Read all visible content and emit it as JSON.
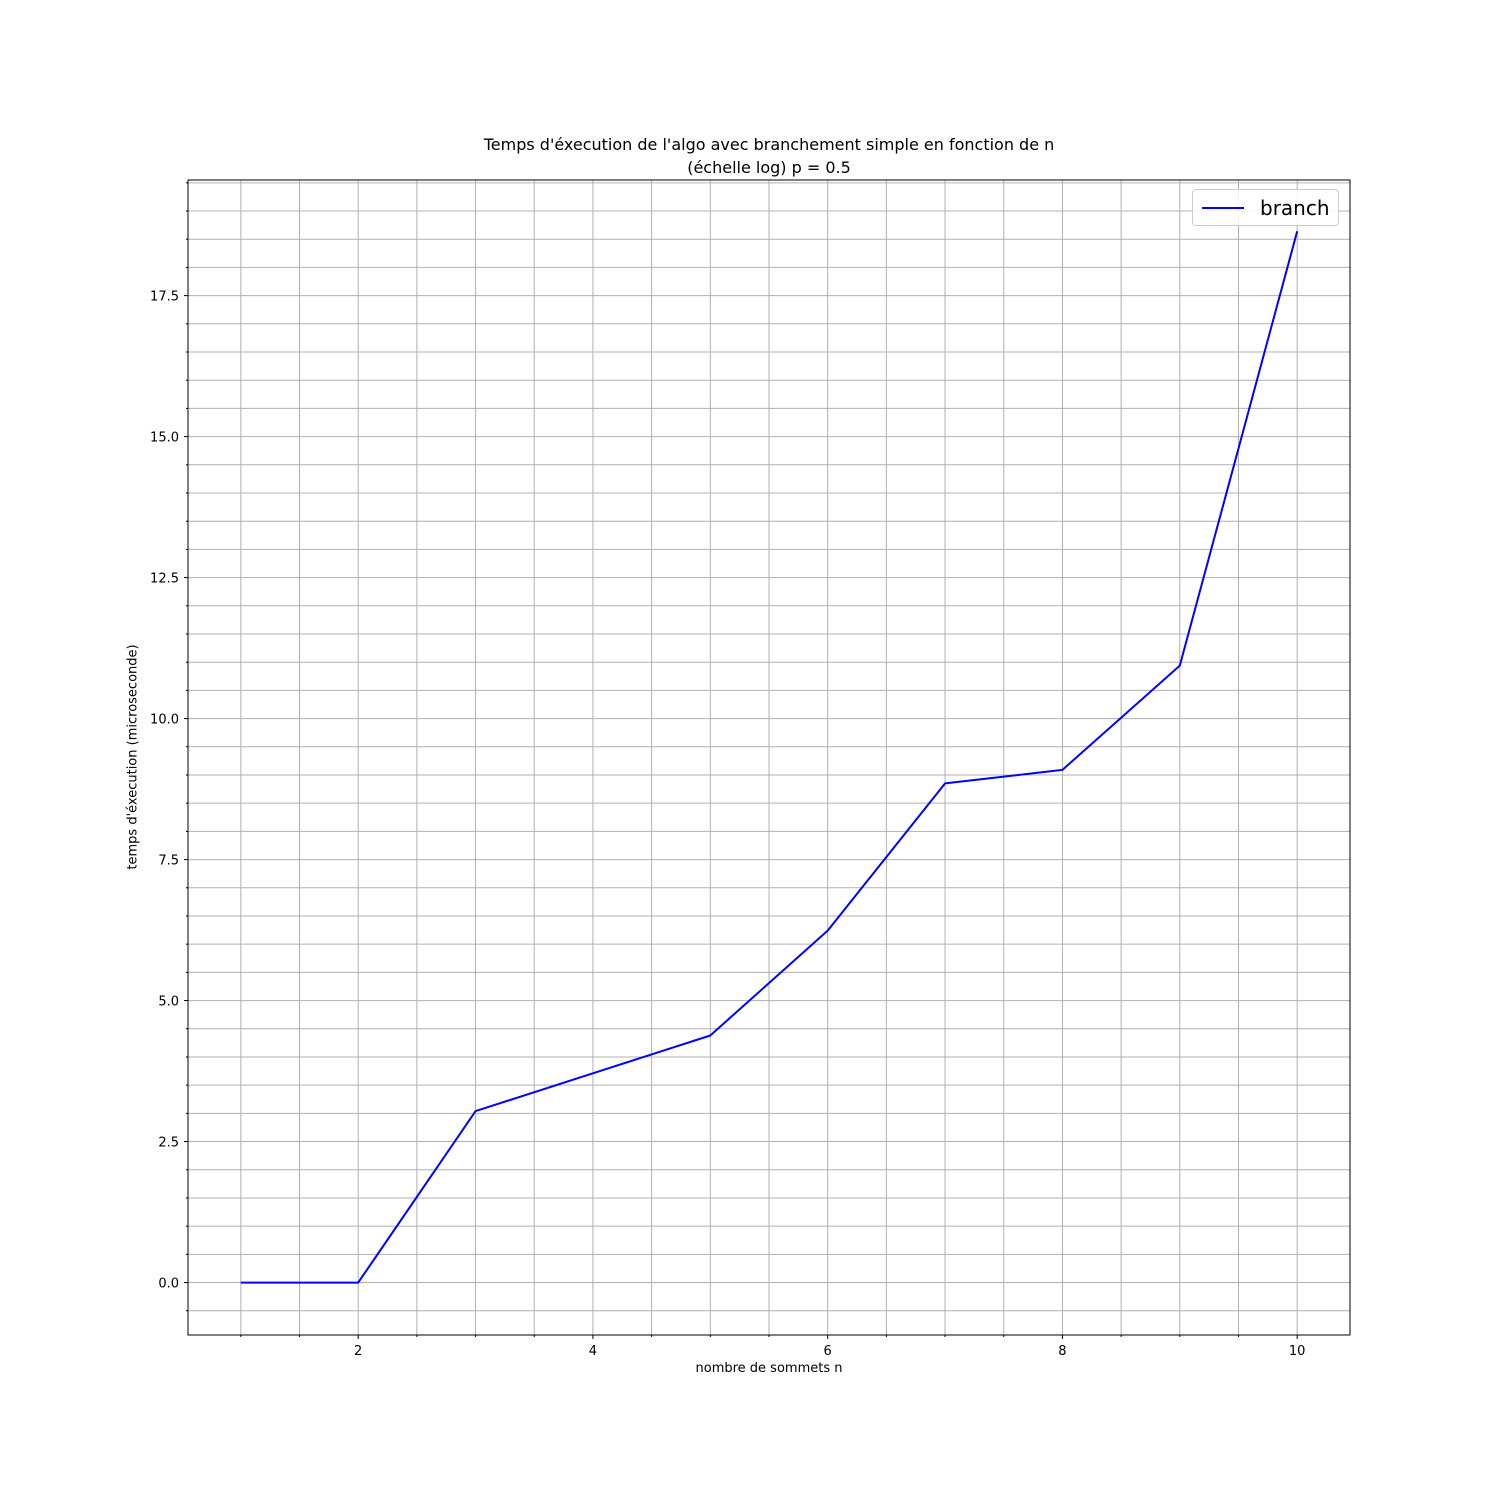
{
  "chart_data": {
    "type": "line",
    "title": "Temps d'éxecution de l'algo avec branchement simple en fonction de n",
    "subtitle": "(échelle log) p = 0.5",
    "xlabel": "nombre de sommets n",
    "ylabel": "temps d'éxecution (microseconde)",
    "xlim": [
      0.55,
      10.45
    ],
    "ylim": [
      -0.93,
      19.55
    ],
    "x_ticks": [
      2,
      4,
      6,
      8,
      10
    ],
    "x_tick_labels": [
      "2",
      "4",
      "6",
      "8",
      "10"
    ],
    "x_minor_ticks": [
      1,
      1.5,
      2.5,
      3,
      3.5,
      4.5,
      5,
      5.5,
      6.5,
      7,
      7.5,
      8.5,
      9,
      9.5
    ],
    "y_ticks": [
      0,
      2.5,
      5,
      7.5,
      10,
      12.5,
      15,
      17.5
    ],
    "y_tick_labels": [
      "0.0",
      "2.5",
      "5.0",
      "7.5",
      "10.0",
      "12.5",
      "15.0",
      "17.5"
    ],
    "y_minor_step": 0.5,
    "grid": true,
    "legend_position": "top-right",
    "series": [
      {
        "name": "branch",
        "color": "#0000ff",
        "x": [
          1,
          2,
          3,
          4,
          5,
          6,
          7,
          8,
          9,
          10
        ],
        "y": [
          0.0,
          0.0,
          3.04,
          3.71,
          4.38,
          6.24,
          8.85,
          9.09,
          10.94,
          18.64
        ]
      }
    ]
  }
}
